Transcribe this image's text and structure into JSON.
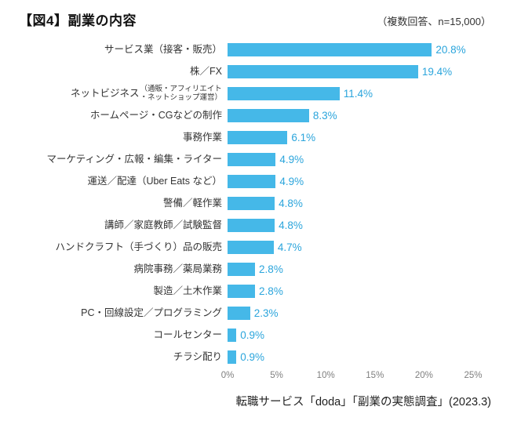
{
  "header": {
    "title": "【図4】副業の内容",
    "note": "（複数回答、n=15,000）"
  },
  "footer": {
    "source": "転職サービス「doda」「副業の実態調査」(2023.3)"
  },
  "chart_data": {
    "type": "bar",
    "orientation": "horizontal",
    "title": "【図4】副業の内容",
    "subtitle": "（複数回答、n=15,000）",
    "xlabel": "",
    "ylabel": "",
    "xlim": [
      0,
      25
    ],
    "x_ticks": [
      "0%",
      "5%",
      "10%",
      "15%",
      "20%",
      "25%"
    ],
    "grid": false,
    "legend": false,
    "bar_color": "#45b8e8",
    "value_color": "#2ba5dc",
    "tick_color": "#7f7f7f",
    "categories": [
      "サービス業（接客・販売）",
      "株／FX",
      "ネットビジネス（通販・アフィリエイト・ネットショップ運営）",
      "ホームページ・CGなどの制作",
      "事務作業",
      "マーケティング・広報・編集・ライター",
      "運送／配達（Uber Eats など）",
      "警備／軽作業",
      "講師／家庭教師／試験監督",
      "ハンドクラフト（手づくり）品の販売",
      "病院事務／薬局業務",
      "製造／土木作業",
      "PC・回線設定／プログラミング",
      "コールセンター",
      "チラシ配り"
    ],
    "values": [
      20.8,
      19.4,
      11.4,
      8.3,
      6.1,
      4.9,
      4.9,
      4.8,
      4.8,
      4.7,
      2.8,
      2.8,
      2.3,
      0.9,
      0.9
    ],
    "rows": [
      {
        "label": "サービス業（接客・販売）",
        "value": 20.8,
        "value_label": "20.8%"
      },
      {
        "label": "株／FX",
        "value": 19.4,
        "value_label": "19.4%"
      },
      {
        "label": "ネットビジネス",
        "small": [
          "（通販・アフィリエイト",
          "・ネットショップ運営）"
        ],
        "value": 11.4,
        "value_label": "11.4%"
      },
      {
        "label": "ホームページ・CGなどの制作",
        "value": 8.3,
        "value_label": "8.3%"
      },
      {
        "label": "事務作業",
        "value": 6.1,
        "value_label": "6.1%"
      },
      {
        "label": "マーケティング・広報・編集・ライター",
        "value": 4.9,
        "value_label": "4.9%"
      },
      {
        "label": "運送／配達（Uber Eats など）",
        "value": 4.9,
        "value_label": "4.9%"
      },
      {
        "label": "警備／軽作業",
        "value": 4.8,
        "value_label": "4.8%"
      },
      {
        "label": "講師／家庭教師／試験監督",
        "value": 4.8,
        "value_label": "4.8%"
      },
      {
        "label": "ハンドクラフト（手づくり）品の販売",
        "value": 4.7,
        "value_label": "4.7%"
      },
      {
        "label": "病院事務／薬局業務",
        "value": 2.8,
        "value_label": "2.8%"
      },
      {
        "label": "製造／土木作業",
        "value": 2.8,
        "value_label": "2.8%"
      },
      {
        "label": "PC・回線設定／プログラミング",
        "value": 2.3,
        "value_label": "2.3%"
      },
      {
        "label": "コールセンター",
        "value": 0.9,
        "value_label": "0.9%"
      },
      {
        "label": "チラシ配り",
        "value": 0.9,
        "value_label": "0.9%"
      }
    ]
  }
}
